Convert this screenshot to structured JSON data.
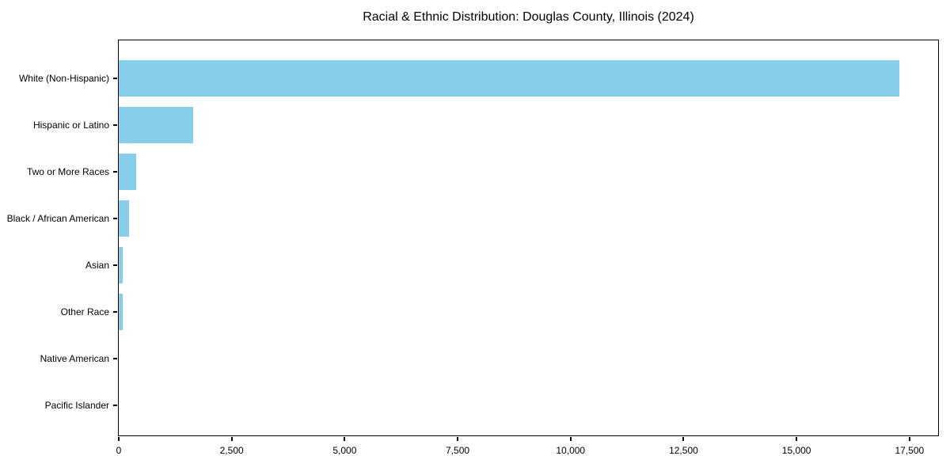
{
  "title": "Racial & Ethnic Distribution: Douglas County, Illinois (2024)",
  "chart_data": {
    "type": "bar",
    "orientation": "horizontal",
    "title": "Racial & Ethnic Distribution: Douglas County, Illinois (2024)",
    "categories": [
      "White (Non-Hispanic)",
      "Hispanic or Latino",
      "Two or More Races",
      "Black / African American",
      "Asian",
      "Other Race",
      "Native American",
      "Pacific Islander"
    ],
    "values": [
      17270,
      1650,
      390,
      230,
      85,
      80,
      0,
      0
    ],
    "xlabel": "",
    "ylabel": "",
    "xlim": [
      0,
      18134
    ],
    "xticks": [
      0,
      2500,
      5000,
      7500,
      10000,
      12500,
      15000,
      17500
    ],
    "xtick_labels": [
      "0",
      "2,500",
      "5,000",
      "7,500",
      "10,000",
      "12,500",
      "15,000",
      "17,500"
    ],
    "bar_color": "#87CEEB",
    "axis_color": "#000000",
    "grid": false,
    "legend_position": "none"
  }
}
